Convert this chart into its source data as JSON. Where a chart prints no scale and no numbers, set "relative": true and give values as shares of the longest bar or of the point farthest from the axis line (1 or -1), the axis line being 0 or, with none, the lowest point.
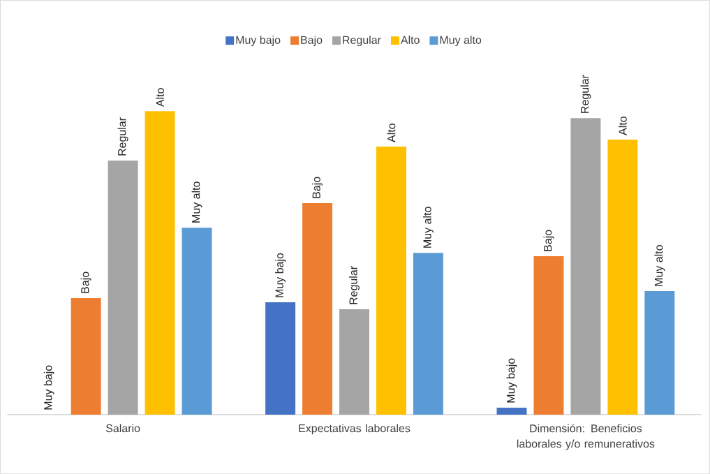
{
  "chart_data": {
    "type": "bar",
    "relative": true,
    "legend": "top",
    "categories": [
      "Salario",
      "Expectativas laborales",
      "Dimensión: Beneficios laborales y/o remunerativos"
    ],
    "series": [
      {
        "name": "Muy bajo",
        "color": "#4472c4",
        "values": [
          0,
          0.37,
          0.023
        ]
      },
      {
        "name": "Bajo",
        "color": "#ed7d31",
        "values": [
          0.384,
          0.697,
          0.522
        ]
      },
      {
        "name": "Regular",
        "color": "#a5a5a5",
        "values": [
          0.837,
          0.347,
          0.977
        ]
      },
      {
        "name": "Alto",
        "color": "#ffc000",
        "values": [
          1,
          0.883,
          0.906
        ]
      },
      {
        "name": "Muy alto",
        "color": "#5b9bd5",
        "values": [
          0.616,
          0.533,
          0.407
        ]
      }
    ]
  }
}
